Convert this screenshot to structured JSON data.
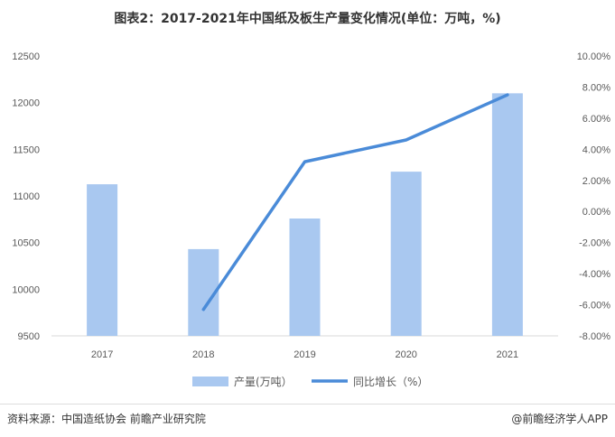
{
  "chart_data": {
    "type": "bar+line",
    "title": "图表2：2017-2021年中国纸及板生产量变化情况(单位：万吨，%)",
    "categories": [
      "2017",
      "2018",
      "2019",
      "2020",
      "2021"
    ],
    "series": [
      {
        "name": "产量(万吨）",
        "type": "bar",
        "axis": "left",
        "color": "#A9C8F0",
        "values": [
          11125,
          10430,
          10758,
          11260,
          12100
        ]
      },
      {
        "name": "同比增长（%）",
        "type": "line",
        "axis": "right",
        "color": "#4A8BD8",
        "values": [
          null,
          -6.3,
          3.2,
          4.6,
          7.5
        ]
      }
    ],
    "left_axis": {
      "ylim": [
        9500,
        12500
      ],
      "ticks": [
        "9500",
        "10000",
        "10500",
        "11000",
        "11500",
        "12000",
        "12500"
      ]
    },
    "right_axis": {
      "ylim": [
        -8,
        10
      ],
      "ticks": [
        "-8.00%",
        "-6.00%",
        "-4.00%",
        "-2.00%",
        "0.00%",
        "2.00%",
        "4.00%",
        "6.00%",
        "8.00%",
        "10.00%"
      ]
    },
    "grid": false,
    "legend": "bottom"
  },
  "footer": {
    "source": "资料来源：中国造纸协会 前瞻产业研究院",
    "brand": "@前瞻经济学人APP"
  }
}
